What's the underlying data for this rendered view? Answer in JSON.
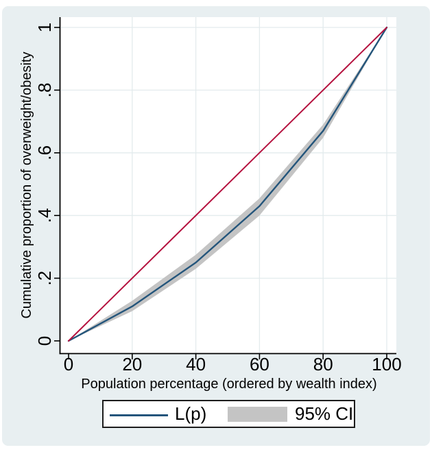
{
  "chart_data": {
    "type": "line",
    "title": "",
    "xlabel": "Population percentage (ordered by wealth index)",
    "ylabel": "Cumulative proportion of overweight/obesity",
    "xlim": [
      0,
      100
    ],
    "ylim": [
      0,
      1
    ],
    "xtick_labels": [
      "0",
      "20",
      "40",
      "60",
      "80",
      "100"
    ],
    "ytick_labels": [
      "0",
      ".2",
      ".4",
      ".6",
      ".8",
      "1"
    ],
    "grid": true,
    "plot_background": "#ffffff",
    "figure_background": "#e8eff1",
    "grid_color": "#e3ebed",
    "series": [
      {
        "name": "L(p)",
        "kind": "line",
        "color": "#24557b",
        "x": [
          0,
          20,
          40,
          60,
          80,
          100
        ],
        "y": [
          0,
          0.11,
          0.25,
          0.43,
          0.67,
          1
        ]
      },
      {
        "name": "Line of equality",
        "kind": "line",
        "color": "#b5123f",
        "x": [
          0,
          100
        ],
        "y": [
          0,
          1
        ]
      },
      {
        "name": "95% CI",
        "kind": "band",
        "color": "#c4c4c4",
        "x": [
          0,
          20,
          40,
          60,
          80,
          100
        ],
        "y_upper": [
          0,
          0.128,
          0.275,
          0.455,
          0.69,
          1
        ],
        "y_lower": [
          0,
          0.095,
          0.23,
          0.4,
          0.648,
          1
        ]
      }
    ],
    "legend": {
      "position": "bottom",
      "entries": [
        {
          "label": "L(p)",
          "swatch": "line",
          "color": "#24557b"
        },
        {
          "label": "95% CI",
          "swatch": "box",
          "color": "#c4c4c4"
        }
      ]
    }
  }
}
